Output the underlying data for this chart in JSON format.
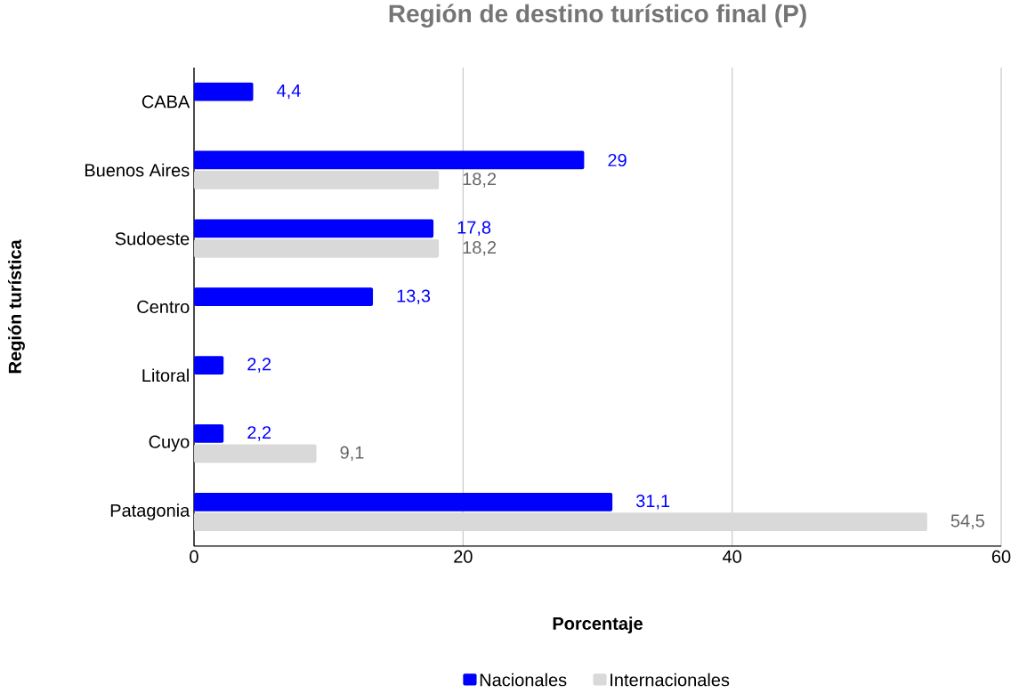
{
  "chart_data": {
    "type": "bar",
    "orientation": "horizontal",
    "title": "Región de destino turístico final (P)",
    "xlabel": "Porcentaje",
    "ylabel": "Región turística",
    "categories": [
      "CABA",
      "Buenos Aires",
      "Sudoeste",
      "Centro",
      "Litoral",
      "Cuyo",
      "Patagonia"
    ],
    "series": [
      {
        "name": "Nacionales",
        "color": "#0000ff",
        "values": [
          4.4,
          29,
          17.8,
          13.3,
          2.2,
          2.2,
          31.1
        ],
        "value_labels": [
          "4,4",
          "29",
          "17,8",
          "13,3",
          "2,2",
          "2,2",
          "31,1"
        ]
      },
      {
        "name": "Internacionales",
        "color": "#d9d9d9",
        "values": [
          null,
          18.2,
          18.2,
          null,
          null,
          9.1,
          54.5
        ],
        "value_labels": [
          null,
          "18,2",
          "18,2",
          null,
          null,
          "9,1",
          "54,5"
        ]
      }
    ],
    "xlim": [
      0,
      60
    ],
    "xticks": [
      0,
      20,
      40,
      60
    ],
    "grid": "x",
    "legend": "bottom"
  }
}
